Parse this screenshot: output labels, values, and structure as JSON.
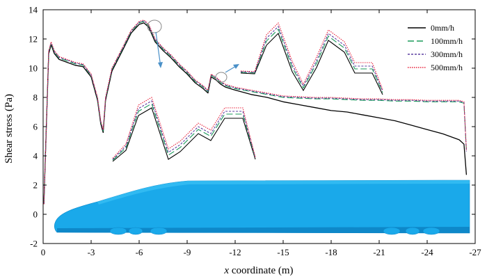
{
  "chart_data": {
    "type": "line",
    "xlabel_var": "x",
    "xlabel_rest": " coordinate (m)",
    "ylabel": "Shear stress (Pa)",
    "xlim": [
      0,
      -27
    ],
    "ylim": [
      -2,
      14
    ],
    "x_ticks": [
      0,
      -3,
      -6,
      -9,
      -12,
      -15,
      -18,
      -21,
      -24,
      -27
    ],
    "y_ticks": [
      -2,
      0,
      2,
      4,
      6,
      8,
      10,
      12,
      14
    ],
    "legend_position": "top-right",
    "series": [
      {
        "name": "0mm/h",
        "color": "#000000",
        "dash": "",
        "x": [
          -0.05,
          -0.2,
          -0.35,
          -0.5,
          -0.7,
          -1.0,
          -1.5,
          -2.0,
          -2.5,
          -3.0,
          -3.4,
          -3.6,
          -3.75,
          -3.9,
          -4.3,
          -5.0,
          -5.5,
          -6.0,
          -6.3,
          -6.6,
          -7.0,
          -7.5,
          -8.0,
          -8.5,
          -9.0,
          -9.5,
          -10.0,
          -10.3,
          -10.5,
          -10.8,
          -11.1,
          -11.4,
          -12.0,
          -13.0,
          -14.0,
          -15.0,
          -16.0,
          -17.0,
          -18.0,
          -19.0,
          -20.0,
          -21.0,
          -22.0,
          -23.0,
          -24.0,
          -25.0,
          -26.0,
          -26.3,
          -26.45
        ],
        "y": [
          0.7,
          6.0,
          11.0,
          11.6,
          11.0,
          10.6,
          10.4,
          10.2,
          10.1,
          9.4,
          7.8,
          6.2,
          5.6,
          7.8,
          9.8,
          11.3,
          12.4,
          13.0,
          13.1,
          12.8,
          11.8,
          11.2,
          10.7,
          10.1,
          9.6,
          9.0,
          8.6,
          8.3,
          9.4,
          9.2,
          8.9,
          8.7,
          8.5,
          8.2,
          8.0,
          7.7,
          7.5,
          7.3,
          7.1,
          7.0,
          6.8,
          6.6,
          6.4,
          6.1,
          5.8,
          5.5,
          5.1,
          4.8,
          2.7
        ]
      },
      {
        "name": "100mm/h",
        "color": "#1a9a5a",
        "dash": "9,4",
        "x": [
          -0.05,
          -0.2,
          -0.35,
          -0.5,
          -0.7,
          -1.0,
          -1.5,
          -2.0,
          -2.5,
          -3.0,
          -3.4,
          -3.6,
          -3.75,
          -3.9,
          -4.3,
          -5.0,
          -5.5,
          -6.0,
          -6.3,
          -6.6,
          -7.0,
          -7.5,
          -8.0,
          -8.5,
          -9.0,
          -9.5,
          -10.0,
          -10.3,
          -10.5,
          -10.8,
          -11.1,
          -11.4,
          -12.0,
          -13.0,
          -14.0,
          -15.0,
          -16.0,
          -17.0,
          -18.0,
          -19.0,
          -20.0,
          -21.0,
          -22.0,
          -23.0,
          -24.0,
          -25.0,
          -26.0,
          -26.3,
          -26.45
        ],
        "y": [
          0.7,
          6.0,
          11.1,
          11.7,
          11.1,
          10.7,
          10.5,
          10.3,
          10.2,
          9.5,
          7.9,
          6.3,
          5.7,
          7.9,
          9.9,
          11.4,
          12.5,
          13.1,
          13.2,
          12.9,
          11.9,
          11.3,
          10.8,
          10.2,
          9.7,
          9.1,
          8.7,
          8.4,
          9.5,
          9.3,
          9.0,
          8.8,
          8.6,
          8.4,
          8.2,
          8.0,
          7.95,
          7.9,
          7.9,
          7.85,
          7.8,
          7.8,
          7.75,
          7.75,
          7.7,
          7.7,
          7.7,
          7.6,
          4.3
        ]
      },
      {
        "name": "300mm/h",
        "color": "#5b3fa0",
        "dash": "3,2",
        "x": [
          -0.05,
          -0.2,
          -0.35,
          -0.5,
          -0.7,
          -1.0,
          -1.5,
          -2.0,
          -2.5,
          -3.0,
          -3.4,
          -3.6,
          -3.75,
          -3.9,
          -4.3,
          -5.0,
          -5.5,
          -6.0,
          -6.3,
          -6.6,
          -7.0,
          -7.5,
          -8.0,
          -8.5,
          -9.0,
          -9.5,
          -10.0,
          -10.3,
          -10.5,
          -10.8,
          -11.1,
          -11.4,
          -12.0,
          -13.0,
          -14.0,
          -15.0,
          -16.0,
          -17.0,
          -18.0,
          -19.0,
          -20.0,
          -21.0,
          -22.0,
          -23.0,
          -24.0,
          -25.0,
          -26.0,
          -26.3,
          -26.45
        ],
        "y": [
          0.7,
          6.0,
          11.15,
          11.75,
          11.15,
          10.75,
          10.55,
          10.35,
          10.25,
          9.55,
          7.95,
          6.35,
          5.75,
          7.95,
          9.95,
          11.45,
          12.55,
          13.15,
          13.25,
          12.95,
          11.95,
          11.35,
          10.85,
          10.25,
          9.75,
          9.15,
          8.75,
          8.45,
          9.55,
          9.35,
          9.05,
          8.85,
          8.65,
          8.45,
          8.25,
          8.05,
          8.0,
          7.95,
          7.95,
          7.9,
          7.85,
          7.85,
          7.8,
          7.8,
          7.75,
          7.75,
          7.75,
          7.65,
          4.3
        ]
      },
      {
        "name": "500mm/h",
        "color": "#e8203a",
        "dash": "1.5,1.5",
        "x": [
          -0.05,
          -0.2,
          -0.35,
          -0.5,
          -0.7,
          -1.0,
          -1.5,
          -2.0,
          -2.5,
          -3.0,
          -3.4,
          -3.6,
          -3.75,
          -3.9,
          -4.3,
          -5.0,
          -5.5,
          -6.0,
          -6.3,
          -6.6,
          -7.0,
          -7.5,
          -8.0,
          -8.5,
          -9.0,
          -9.5,
          -10.0,
          -10.3,
          -10.5,
          -10.8,
          -11.1,
          -11.4,
          -12.0,
          -13.0,
          -14.0,
          -15.0,
          -16.0,
          -17.0,
          -18.0,
          -19.0,
          -20.0,
          -21.0,
          -22.0,
          -23.0,
          -24.0,
          -25.0,
          -26.0,
          -26.3,
          -26.45
        ],
        "y": [
          0.7,
          6.0,
          11.2,
          11.8,
          11.2,
          10.8,
          10.6,
          10.4,
          10.3,
          9.6,
          8.0,
          6.4,
          5.8,
          8.0,
          10.0,
          11.5,
          12.6,
          13.2,
          13.3,
          13.0,
          12.0,
          11.4,
          10.9,
          10.3,
          9.8,
          9.2,
          8.8,
          8.5,
          9.6,
          9.4,
          9.1,
          8.9,
          8.7,
          8.5,
          8.3,
          8.1,
          8.05,
          8.0,
          8.0,
          7.95,
          7.9,
          7.9,
          7.85,
          7.85,
          7.8,
          7.8,
          7.8,
          7.7,
          4.4
        ]
      }
    ]
  }
}
